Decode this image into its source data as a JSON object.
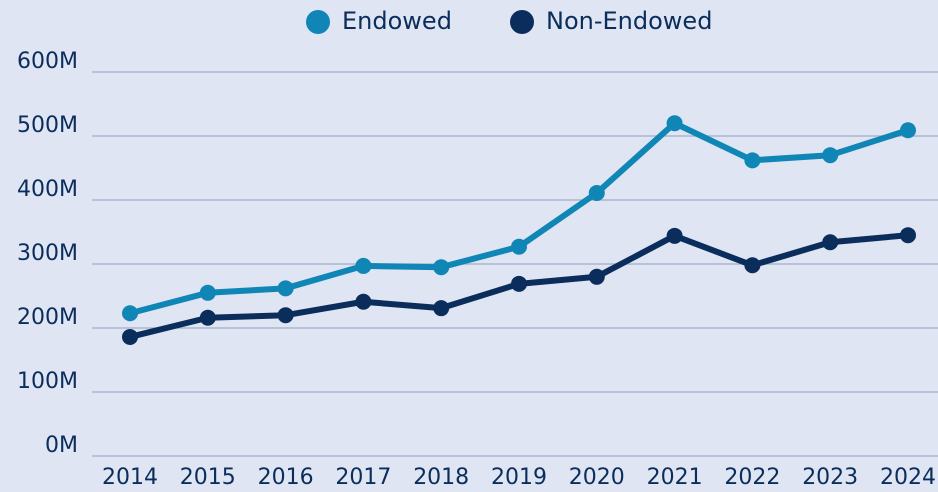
{
  "chart_data": {
    "type": "line",
    "categories": [
      "2014",
      "2015",
      "2016",
      "2017",
      "2018",
      "2019",
      "2020",
      "2021",
      "2022",
      "2023",
      "2024"
    ],
    "series": [
      {
        "name": "Endowed",
        "color": "#0f86b6",
        "values": [
          223,
          255,
          262,
          297,
          295,
          327,
          411,
          520,
          462,
          470,
          509
        ]
      },
      {
        "name": "Non-Endowed",
        "color": "#0b2d5b",
        "values": [
          186,
          216,
          220,
          241,
          231,
          269,
          280,
          344,
          298,
          334,
          345
        ]
      }
    ],
    "ylim": [
      0,
      600
    ],
    "yticks": [
      {
        "value": 0,
        "label": "0M"
      },
      {
        "value": 100,
        "label": "100M"
      },
      {
        "value": 200,
        "label": "200M"
      },
      {
        "value": 300,
        "label": "300M"
      },
      {
        "value": 400,
        "label": "400M"
      },
      {
        "value": 500,
        "label": "500M"
      },
      {
        "value": 600,
        "label": "600M"
      }
    ],
    "grid": true,
    "legend": "top"
  }
}
